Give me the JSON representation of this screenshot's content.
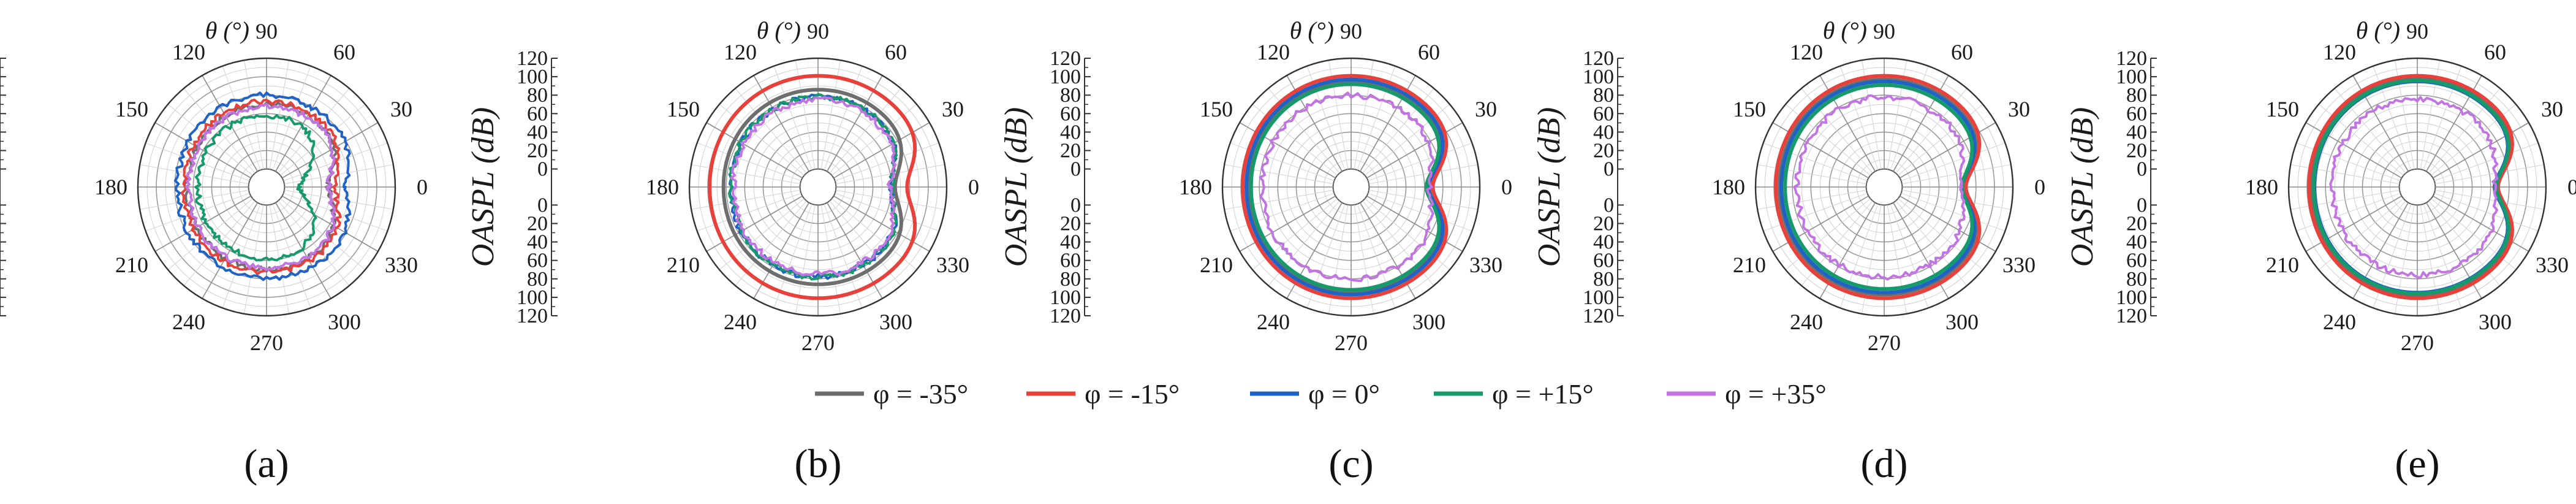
{
  "figure": {
    "ylabel": "OASPL (dB)",
    "theta_label": "θ (°)"
  },
  "colors": {
    "phi_-35": "#6e6e6e",
    "phi_-15": "#e8403a",
    "phi_0": "#1f63c6",
    "phi_+15": "#169a6a",
    "phi_+35": "#c275e2"
  },
  "legend": [
    {
      "key": "phi_-35",
      "label": "φ = -35°"
    },
    {
      "key": "phi_-15",
      "label": "φ = -15°"
    },
    {
      "key": "phi_0",
      "label": "φ = 0°"
    },
    {
      "key": "phi_+15",
      "label": "φ = +15°"
    },
    {
      "key": "phi_+35",
      "label": "φ = +35°"
    }
  ],
  "chart_data": [
    {
      "panel": "(a)",
      "type": "polar",
      "radial_ticks": [
        0,
        20,
        40,
        60,
        80,
        100,
        120
      ],
      "angle_ticks": [
        0,
        30,
        60,
        90,
        120,
        150,
        180,
        210,
        240,
        270,
        300,
        330
      ],
      "rlim": [
        0,
        120
      ],
      "grid": true,
      "series": [
        {
          "key": "phi_-35",
          "base": 70,
          "dip": 22,
          "dipw": 26,
          "noise": 3
        },
        {
          "key": "phi_-15",
          "base": 73,
          "dip": 18,
          "dipw": 26,
          "noise": 3
        },
        {
          "key": "phi_0",
          "base": 80,
          "dip": 13,
          "dipw": 22,
          "noise": 3
        },
        {
          "key": "phi_+15",
          "base": 58,
          "dip": 42,
          "dipw": 34,
          "noise": 3
        },
        {
          "key": "phi_+35",
          "base": 68,
          "dip": 20,
          "dipw": 26,
          "noise": 3
        }
      ]
    },
    {
      "panel": "(b)",
      "type": "polar",
      "radial_ticks": [
        0,
        20,
        40,
        60,
        80,
        100,
        120
      ],
      "angle_ticks": [
        0,
        30,
        60,
        90,
        120,
        150,
        180,
        210,
        240,
        270,
        300,
        330
      ],
      "rlim": [
        0,
        120
      ],
      "grid": true,
      "series": [
        {
          "key": "phi_-35",
          "base": 86,
          "dip": 22,
          "dipw": 22,
          "noise": 0
        },
        {
          "key": "phi_-15",
          "base": 101,
          "dip": 24,
          "dipw": 20,
          "noise": 0
        },
        {
          "key": "phi_0",
          "base": 78,
          "dip": 18,
          "dipw": 24,
          "noise": 3
        },
        {
          "key": "phi_+15",
          "base": 78,
          "dip": 18,
          "dipw": 24,
          "noise": 3
        },
        {
          "key": "phi_+35",
          "base": 75,
          "dip": 16,
          "dipw": 24,
          "noise": 3
        }
      ]
    },
    {
      "panel": "(c)",
      "type": "polar",
      "radial_ticks": [
        0,
        20,
        40,
        60,
        80,
        100,
        120
      ],
      "angle_ticks": [
        0,
        30,
        60,
        90,
        120,
        150,
        180,
        210,
        240,
        270,
        300,
        330
      ],
      "rlim": [
        0,
        120
      ],
      "grid": true,
      "series": [
        {
          "key": "phi_-35",
          "base": 95,
          "dip": 30,
          "dipw": 20,
          "noise": 0
        },
        {
          "key": "phi_-15",
          "base": 101,
          "dip": 32,
          "dipw": 20,
          "noise": 0
        },
        {
          "key": "phi_0",
          "base": 97,
          "dip": 33,
          "dipw": 20,
          "noise": 0
        },
        {
          "key": "phi_+15",
          "base": 92,
          "dip": 30,
          "dipw": 20,
          "noise": 0
        },
        {
          "key": "phi_+35",
          "base": 80,
          "dip": 14,
          "dipw": 24,
          "noise": 3
        }
      ]
    },
    {
      "panel": "(d)",
      "type": "polar",
      "radial_ticks": [
        0,
        20,
        40,
        60,
        80,
        100,
        120
      ],
      "angle_ticks": [
        0,
        30,
        60,
        90,
        120,
        150,
        180,
        210,
        240,
        270,
        300,
        330
      ],
      "rlim": [
        0,
        120
      ],
      "grid": true,
      "series": [
        {
          "key": "phi_-35",
          "base": 97,
          "dip": 33,
          "dipw": 20,
          "noise": 0
        },
        {
          "key": "phi_-15",
          "base": 101,
          "dip": 32,
          "dipw": 20,
          "noise": 0
        },
        {
          "key": "phi_0",
          "base": 95,
          "dip": 30,
          "dipw": 20,
          "noise": 0
        },
        {
          "key": "phi_+15",
          "base": 91,
          "dip": 26,
          "dipw": 20,
          "noise": 0
        },
        {
          "key": "phi_+35",
          "base": 78,
          "dip": 14,
          "dipw": 24,
          "noise": 3
        }
      ]
    },
    {
      "panel": "(e)",
      "type": "polar",
      "radial_ticks": [
        0,
        20,
        40,
        60,
        80,
        100,
        120
      ],
      "angle_ticks": [
        0,
        30,
        60,
        90,
        120,
        150,
        180,
        210,
        240,
        270,
        300,
        330
      ],
      "rlim": [
        0,
        120
      ],
      "grid": true,
      "series": [
        {
          "key": "phi_-35",
          "base": 98,
          "dip": 34,
          "dipw": 20,
          "noise": 0
        },
        {
          "key": "phi_-15",
          "base": 101,
          "dip": 33,
          "dipw": 20,
          "noise": 0
        },
        {
          "key": "phi_0",
          "base": 95,
          "dip": 30,
          "dipw": 20,
          "noise": 0
        },
        {
          "key": "phi_+15",
          "base": 96,
          "dip": 30,
          "dipw": 20,
          "noise": 0
        },
        {
          "key": "phi_+35",
          "base": 76,
          "dip": 12,
          "dipw": 24,
          "noise": 3
        }
      ]
    }
  ]
}
